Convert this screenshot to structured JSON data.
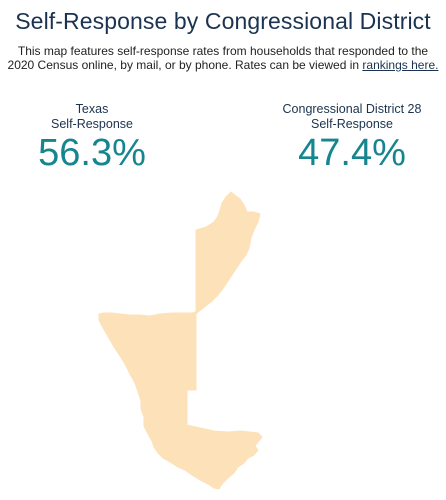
{
  "title": "Self-Response by Congressional District",
  "description": {
    "text": "This map features self-response rates from households that responded to the 2020 Census online, by mail, or by phone. Rates can be viewed in ",
    "link_text": "rankings here."
  },
  "stats": {
    "state": {
      "label_line1": "Texas",
      "label_line2": "Self-Response",
      "value": "56.3%"
    },
    "district": {
      "label_line1": "Congressional District 28",
      "label_line2": "Self-Response",
      "value": "47.4%"
    }
  },
  "map": {
    "fill_color": "#fde2b9",
    "title_color": "#1b3350",
    "value_color": "#15858f"
  }
}
